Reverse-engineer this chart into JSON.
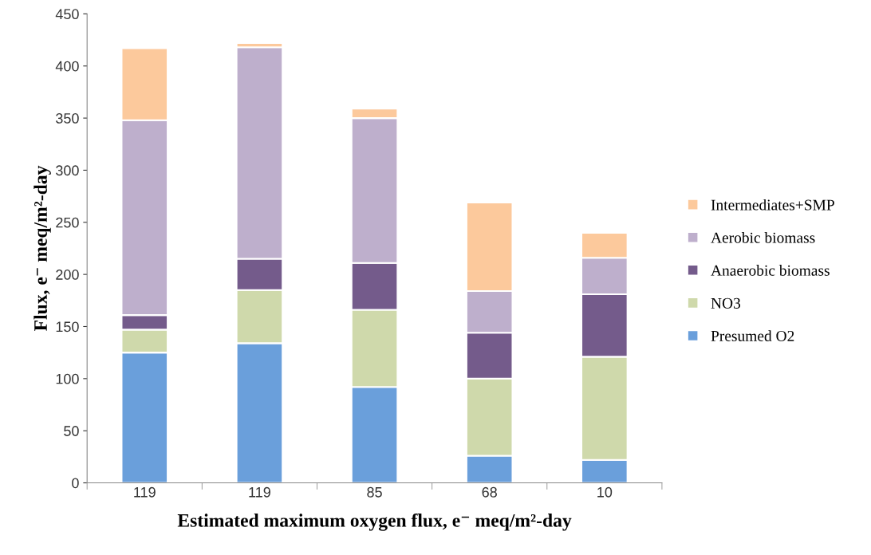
{
  "chart_data": {
    "type": "bar",
    "stacked": true,
    "xlabel": "Estimated maximum oxygen flux, e⁻ meq/m²-day",
    "ylabel": "Flux, e⁻ meq/m²-day",
    "categories": [
      "119",
      "119",
      "85",
      "68",
      "10"
    ],
    "series": [
      {
        "name": "Presumed O2",
        "color": "#6a9fdb",
        "values": [
          125,
          134,
          92,
          26,
          22
        ]
      },
      {
        "name": "NO3",
        "color": "#cfd9ab",
        "values": [
          22,
          51,
          74,
          74,
          99
        ]
      },
      {
        "name": "Anaerobic biomass",
        "color": "#745b8b",
        "values": [
          14,
          30,
          45,
          44,
          60
        ]
      },
      {
        "name": "Aerobic biomass",
        "color": "#beafcc",
        "values": [
          187,
          203,
          139,
          40,
          35
        ]
      },
      {
        "name": "Intermediates+SMP",
        "color": "#fcc99c",
        "values": [
          69,
          4,
          9,
          85,
          24
        ]
      }
    ],
    "ylim": [
      0,
      450
    ],
    "yticks": [
      0,
      50,
      100,
      150,
      200,
      250,
      300,
      350,
      400,
      450
    ],
    "legend": "right",
    "grid": false
  }
}
